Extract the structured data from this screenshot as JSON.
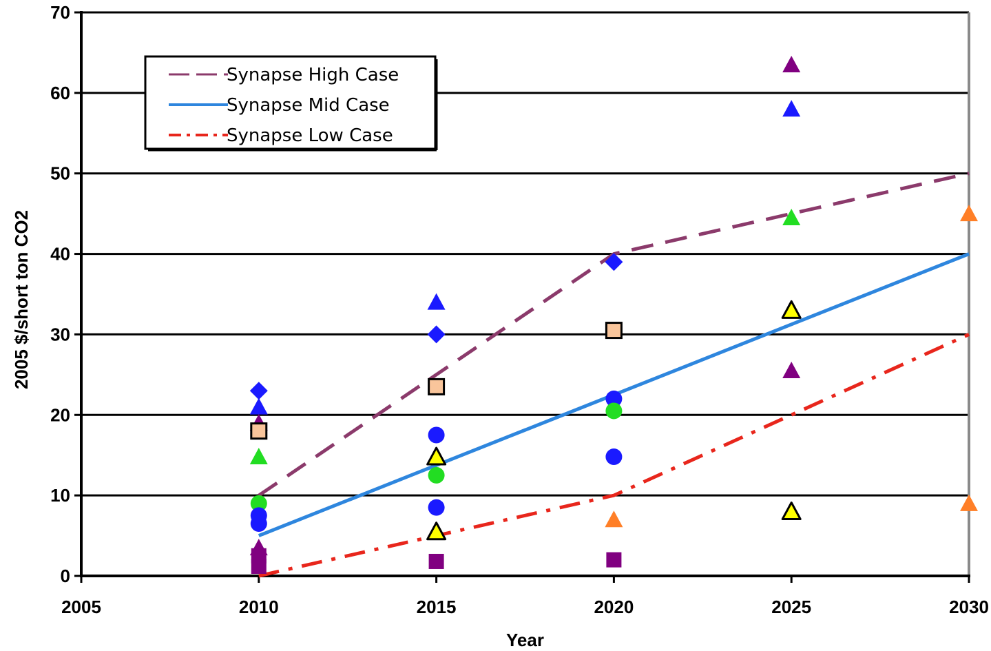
{
  "chart_data": {
    "type": "scatter",
    "title": "",
    "xlabel": "Year",
    "ylabel": "2005 $/short ton CO2",
    "xlim": [
      2005,
      2030
    ],
    "ylim": [
      0,
      70
    ],
    "x_ticks": [
      "2005",
      "2010",
      "2015",
      "2020",
      "2025",
      "2030"
    ],
    "y_ticks": [
      "0",
      "10",
      "20",
      "30",
      "40",
      "50",
      "60",
      "70"
    ],
    "grid": "horizontal",
    "legend_position": "top-left",
    "lines": [
      {
        "name": "Synapse High Case",
        "style": "dashed",
        "color": "#8b3a6b",
        "x": [
          2010,
          2015,
          2020,
          2025,
          2030
        ],
        "y": [
          10,
          25,
          40,
          45,
          50
        ]
      },
      {
        "name": "Synapse Mid Case",
        "style": "solid",
        "color": "#2e86de",
        "x": [
          2010,
          2030
        ],
        "y": [
          5,
          40
        ]
      },
      {
        "name": "Synapse Low Case",
        "style": "dash-dot",
        "color": "#e8261c",
        "x": [
          2010,
          2015,
          2020,
          2025,
          2030
        ],
        "y": [
          0,
          5,
          10,
          20,
          30
        ]
      }
    ],
    "points": [
      {
        "x": 2010,
        "y": 23,
        "shape": "diamond",
        "color": "#1a1aff"
      },
      {
        "x": 2010,
        "y": 21,
        "shape": "triangle",
        "color": "#1a1aff"
      },
      {
        "x": 2010,
        "y": 19,
        "shape": "triangle",
        "color": "#800080"
      },
      {
        "x": 2010,
        "y": 18,
        "shape": "square",
        "color": "#f9c59b"
      },
      {
        "x": 2010,
        "y": 14.8,
        "shape": "triangle",
        "color": "#22dd22"
      },
      {
        "x": 2010,
        "y": 9,
        "shape": "circle",
        "color": "#22dd22"
      },
      {
        "x": 2010,
        "y": 7.5,
        "shape": "circle",
        "color": "#1a1aff"
      },
      {
        "x": 2010,
        "y": 6.5,
        "shape": "circle",
        "color": "#1a1aff"
      },
      {
        "x": 2010,
        "y": 3.5,
        "shape": "triangle",
        "color": "#800080"
      },
      {
        "x": 2010,
        "y": 2.5,
        "shape": "square",
        "color": "#800080"
      },
      {
        "x": 2010,
        "y": 1.2,
        "shape": "square",
        "color": "#800080"
      },
      {
        "x": 2015,
        "y": 34,
        "shape": "triangle",
        "color": "#1a1aff"
      },
      {
        "x": 2015,
        "y": 30,
        "shape": "diamond",
        "color": "#1a1aff"
      },
      {
        "x": 2015,
        "y": 23.5,
        "shape": "square",
        "color": "#f9c59b"
      },
      {
        "x": 2015,
        "y": 17.5,
        "shape": "circle",
        "color": "#1a1aff"
      },
      {
        "x": 2015,
        "y": 14.8,
        "shape": "triangle",
        "color": "#ffff00"
      },
      {
        "x": 2015,
        "y": 12.5,
        "shape": "circle",
        "color": "#22dd22"
      },
      {
        "x": 2015,
        "y": 8.5,
        "shape": "circle",
        "color": "#1a1aff"
      },
      {
        "x": 2015,
        "y": 5.5,
        "shape": "triangle",
        "color": "#ffff00"
      },
      {
        "x": 2015,
        "y": 1.8,
        "shape": "square",
        "color": "#800080"
      },
      {
        "x": 2020,
        "y": 39,
        "shape": "diamond",
        "color": "#1a1aff"
      },
      {
        "x": 2020,
        "y": 30.5,
        "shape": "square",
        "color": "#f9c59b"
      },
      {
        "x": 2020,
        "y": 22,
        "shape": "circle",
        "color": "#1a1aff"
      },
      {
        "x": 2020,
        "y": 20.5,
        "shape": "circle",
        "color": "#22dd22"
      },
      {
        "x": 2020,
        "y": 14.8,
        "shape": "circle",
        "color": "#1a1aff"
      },
      {
        "x": 2020,
        "y": 7,
        "shape": "triangle",
        "color": "#ff7f27"
      },
      {
        "x": 2020,
        "y": 2,
        "shape": "square",
        "color": "#800080"
      },
      {
        "x": 2025,
        "y": 63.5,
        "shape": "triangle",
        "color": "#800080"
      },
      {
        "x": 2025,
        "y": 58,
        "shape": "triangle",
        "color": "#1a1aff"
      },
      {
        "x": 2025,
        "y": 44.5,
        "shape": "triangle",
        "color": "#22dd22"
      },
      {
        "x": 2025,
        "y": 33,
        "shape": "triangle",
        "color": "#ffff00"
      },
      {
        "x": 2025,
        "y": 25.5,
        "shape": "triangle",
        "color": "#800080"
      },
      {
        "x": 2025,
        "y": 8,
        "shape": "triangle",
        "color": "#ffff00"
      },
      {
        "x": 2030,
        "y": 45,
        "shape": "triangle",
        "color": "#ff7f27"
      },
      {
        "x": 2030,
        "y": 9,
        "shape": "triangle",
        "color": "#ff7f27"
      }
    ]
  }
}
